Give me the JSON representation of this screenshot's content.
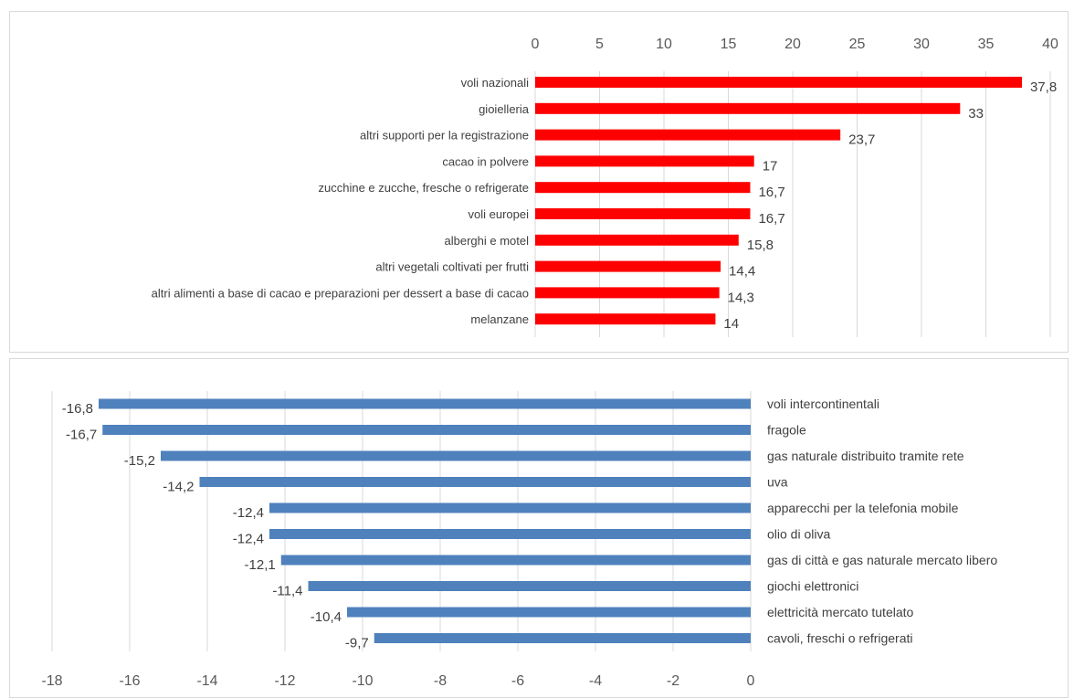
{
  "chart_data": [
    {
      "type": "bar",
      "orientation": "horizontal",
      "categories": [
        "voli nazionali",
        "gioielleria",
        "altri supporti per la registrazione",
        "cacao in polvere",
        "zucchine e zucche, fresche o refrigerate",
        "voli europei",
        "alberghi e motel",
        "altri vegetali coltivati per frutti",
        "altri alimenti a base di cacao e preparazioni per dessert a base di cacao",
        "melanzane"
      ],
      "values": [
        37.8,
        33,
        23.7,
        17,
        16.7,
        16.7,
        15.8,
        14.4,
        14.3,
        14
      ],
      "value_labels": [
        "37,8",
        "33",
        "23,7",
        "17",
        "16,7",
        "16,7",
        "15,8",
        "14,4",
        "14,3",
        "14"
      ],
      "ticks": [
        "0",
        "5",
        "10",
        "15",
        "20",
        "25",
        "30",
        "35",
        "40"
      ],
      "xlim": [
        0,
        40
      ],
      "axis_position": "top",
      "grid": true,
      "color": "#ff0000"
    },
    {
      "type": "bar",
      "orientation": "horizontal",
      "categories": [
        "voli intercontinentali",
        "fragole",
        "gas naturale distribuito tramite rete",
        "uva",
        "apparecchi per la telefonia mobile",
        "olio di oliva",
        "gas di città e gas naturale mercato libero",
        "giochi elettronici",
        "elettricità mercato tutelato",
        "cavoli, freschi o refrigerati"
      ],
      "values": [
        -16.8,
        -16.7,
        -15.2,
        -14.2,
        -12.4,
        -12.4,
        -12.1,
        -11.4,
        -10.4,
        -9.7
      ],
      "value_labels": [
        "-16,8",
        "-16,7",
        "-15,2",
        "-14,2",
        "-12,4",
        "-12,4",
        "-12,1",
        "-11,4",
        "-10,4",
        "-9,7"
      ],
      "ticks": [
        "-18",
        "-16",
        "-14",
        "-12",
        "-10",
        "-8",
        "-6",
        "-4",
        "-2",
        "0"
      ],
      "xlim": [
        -18,
        0
      ],
      "axis_position": "bottom",
      "grid": true,
      "color": "#4f81bd"
    }
  ]
}
